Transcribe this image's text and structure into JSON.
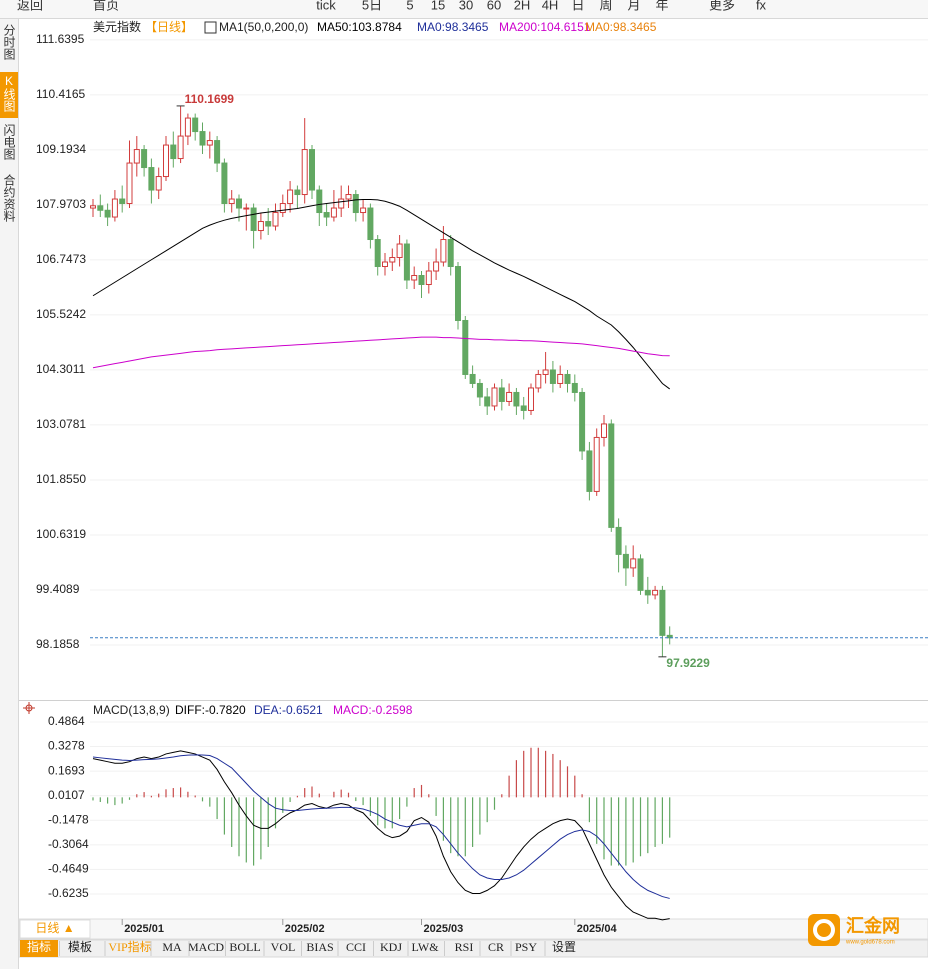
{
  "toolbar": [
    "返回",
    "首页",
    "tick",
    "5日",
    "5",
    "15",
    "30",
    "60",
    "2H",
    "4H",
    "日",
    "周",
    "月",
    "年",
    "更多",
    "fx"
  ],
  "side_tabs": [
    "分时图",
    "K线图",
    "闪电图",
    "合约资料"
  ],
  "period_tab": "日线 ▲",
  "bottom_tabs": [
    "指标",
    "模板",
    "VIP指标",
    "MA",
    "MACD",
    "BOLL",
    "VOL",
    "BIAS",
    "CCI",
    "KDJ",
    "LW&",
    "RSI",
    "CR",
    "PSY",
    "设置"
  ],
  "logo": {
    "text": "汇金网",
    "url": "www.gold678.com"
  },
  "chart_data": {
    "type": "candlestick",
    "title": "美元指数",
    "period": "【日线】",
    "indicator": "MA1(50,0,200,0)",
    "ma0_label": "MA0:",
    "ma0_colors": [
      "#1f2f9a",
      "#e8820c"
    ],
    "up_color": "#d23c3c",
    "down_color": "#62a862",
    "last_line_color": "#3a7fc4",
    "ylim": [
      97.03,
      112.08
    ],
    "yticks": [
      111.6395,
      110.4165,
      109.1934,
      107.9703,
      106.7473,
      105.5242,
      104.3011,
      103.0781,
      {
        "value": 101.855,
        "label": "101.8550"
      },
      100.6319,
      99.4089,
      98.1858
    ],
    "categories": [
      null,
      null,
      null,
      null,
      "2025/01",
      null,
      null,
      null,
      null,
      null,
      null,
      null,
      null,
      null,
      null,
      null,
      null,
      null,
      null,
      null,
      null,
      null,
      null,
      null,
      null,
      null,
      "2025/02",
      null,
      null,
      null,
      null,
      null,
      null,
      null,
      null,
      null,
      null,
      null,
      null,
      null,
      null,
      null,
      null,
      null,
      null,
      "2025/03",
      null,
      null,
      null,
      null,
      null,
      null,
      null,
      null,
      null,
      null,
      null,
      null,
      null,
      null,
      null,
      null,
      null,
      null,
      null,
      null,
      "2025/04",
      null,
      null,
      null,
      null,
      null,
      null,
      null,
      null,
      null,
      null,
      null,
      null,
      null
    ],
    "candles": [
      [
        107.9,
        108.1,
        107.7,
        107.95
      ],
      [
        107.95,
        108.2,
        107.7,
        107.85
      ],
      [
        107.85,
        108.0,
        107.5,
        107.7
      ],
      [
        107.7,
        108.3,
        107.6,
        108.1
      ],
      [
        108.1,
        108.4,
        107.8,
        108.0
      ],
      [
        108.0,
        109.4,
        107.9,
        108.9
      ],
      [
        108.9,
        109.5,
        108.6,
        109.2
      ],
      [
        109.2,
        109.3,
        108.6,
        108.8
      ],
      [
        108.8,
        109.0,
        108.0,
        108.3
      ],
      [
        108.3,
        108.8,
        108.1,
        108.6
      ],
      [
        108.6,
        109.5,
        108.5,
        109.3
      ],
      [
        109.3,
        109.6,
        108.8,
        109.0
      ],
      [
        109.0,
        110.1699,
        108.9,
        109.5
      ],
      [
        109.5,
        110.0,
        109.3,
        109.9
      ],
      [
        109.9,
        110.0,
        109.4,
        109.6
      ],
      [
        109.6,
        109.8,
        109.1,
        109.3
      ],
      [
        109.3,
        109.6,
        109.0,
        109.4
      ],
      [
        109.4,
        109.5,
        108.7,
        108.9
      ],
      [
        108.9,
        109.0,
        107.8,
        108.0
      ],
      [
        108.0,
        108.3,
        107.8,
        108.1
      ],
      [
        108.1,
        108.2,
        107.6,
        107.9
      ],
      [
        107.9,
        108.0,
        107.4,
        107.9
      ],
      [
        107.9,
        108.0,
        107.0,
        107.4
      ],
      [
        107.4,
        107.8,
        107.2,
        107.6
      ],
      [
        107.6,
        107.9,
        107.3,
        107.5
      ],
      [
        107.5,
        108.0,
        107.4,
        107.8
      ],
      [
        107.8,
        108.2,
        107.7,
        108.0
      ],
      [
        108.0,
        108.5,
        107.8,
        108.3
      ],
      [
        108.3,
        108.4,
        107.9,
        108.2
      ],
      [
        108.2,
        109.9,
        108.0,
        109.2
      ],
      [
        109.2,
        109.3,
        108.1,
        108.3
      ],
      [
        108.3,
        108.4,
        107.5,
        107.8
      ],
      [
        107.8,
        108.0,
        107.5,
        107.7
      ],
      [
        107.7,
        108.3,
        107.6,
        107.9
      ],
      [
        107.9,
        108.4,
        107.7,
        108.1
      ],
      [
        108.1,
        108.4,
        107.9,
        108.2
      ],
      [
        108.2,
        108.3,
        107.6,
        107.8
      ],
      [
        107.8,
        108.1,
        107.6,
        107.9
      ],
      [
        107.9,
        108.0,
        107.0,
        107.2
      ],
      [
        107.2,
        107.3,
        106.4,
        106.6
      ],
      [
        106.6,
        106.9,
        106.4,
        106.7
      ],
      [
        106.7,
        107.0,
        106.5,
        106.8
      ],
      [
        106.8,
        107.3,
        106.6,
        107.1
      ],
      [
        107.1,
        107.2,
        106.1,
        106.3
      ],
      [
        106.3,
        106.6,
        106.1,
        106.4
      ],
      [
        106.4,
        106.5,
        105.9,
        106.2
      ],
      [
        106.2,
        106.7,
        106.0,
        106.5
      ],
      [
        106.5,
        107.0,
        106.3,
        106.7
      ],
      [
        106.7,
        107.5,
        106.6,
        107.2
      ],
      [
        107.2,
        107.3,
        106.4,
        106.6
      ],
      [
        106.6,
        106.7,
        105.2,
        105.4
      ],
      [
        105.4,
        105.5,
        104.1,
        104.2
      ],
      [
        104.2,
        104.4,
        103.9,
        104.0
      ],
      [
        104.0,
        104.1,
        103.5,
        103.7
      ],
      [
        103.7,
        103.9,
        103.3,
        103.5
      ],
      [
        103.5,
        104.0,
        103.4,
        103.9
      ],
      [
        103.9,
        104.1,
        103.4,
        103.6
      ],
      [
        103.6,
        104.0,
        103.5,
        103.8
      ],
      [
        103.8,
        103.9,
        103.3,
        103.5
      ],
      [
        103.5,
        103.7,
        103.2,
        103.4
      ],
      [
        103.4,
        104.0,
        103.3,
        103.9
      ],
      [
        103.9,
        104.3,
        103.8,
        104.2
      ],
      [
        104.2,
        104.7,
        104.0,
        104.3
      ],
      [
        104.3,
        104.5,
        103.8,
        104.0
      ],
      [
        104.0,
        104.4,
        103.9,
        104.2
      ],
      [
        104.2,
        104.3,
        103.8,
        104.0
      ],
      [
        104.0,
        104.2,
        103.6,
        103.8
      ],
      [
        103.8,
        103.9,
        102.3,
        102.5
      ],
      [
        102.5,
        102.7,
        101.4,
        101.6
      ],
      [
        101.6,
        103.0,
        101.5,
        102.8
      ],
      [
        102.8,
        103.3,
        102.6,
        103.1
      ],
      [
        103.1,
        103.2,
        100.7,
        100.8
      ],
      [
        100.8,
        101.0,
        99.8,
        100.2
      ],
      [
        100.2,
        100.4,
        99.5,
        99.9
      ],
      [
        99.9,
        100.4,
        99.7,
        100.1
      ],
      [
        100.1,
        100.2,
        99.3,
        99.4
      ],
      [
        99.4,
        99.7,
        99.1,
        99.3
      ],
      [
        99.3,
        99.5,
        99.2,
        99.4
      ],
      [
        99.4,
        99.5,
        97.9229,
        98.4
      ],
      [
        98.4,
        98.6,
        98.2,
        98.3465
      ]
    ],
    "series": [
      {
        "name": "MA50:",
        "color": "#000000",
        "values": [
          105.95,
          106.05,
          106.15,
          106.25,
          106.35,
          106.45,
          106.55,
          106.65,
          106.75,
          106.85,
          106.95,
          107.05,
          107.15,
          107.25,
          107.35,
          107.45,
          107.52,
          107.58,
          107.63,
          107.67,
          107.7,
          107.73,
          107.76,
          107.79,
          107.81,
          107.83,
          107.85,
          107.87,
          107.89,
          107.92,
          107.95,
          107.98,
          108.0,
          108.02,
          108.04,
          108.06,
          108.08,
          108.09,
          108.09,
          108.08,
          108.05,
          108.0,
          107.94,
          107.85,
          107.75,
          107.65,
          107.55,
          107.45,
          107.35,
          107.25,
          107.15,
          107.05,
          106.95,
          106.86,
          106.77,
          106.68,
          106.6,
          106.52,
          106.45,
          106.38,
          106.3,
          106.22,
          106.14,
          106.06,
          105.98,
          105.9,
          105.82,
          105.72,
          105.62,
          105.5,
          105.4,
          105.3,
          105.15,
          104.98,
          104.8,
          104.6,
          104.4,
          104.2,
          104.0,
          103.8784
        ]
      },
      {
        "name": "MA200:",
        "color": "#cc00cc",
        "values": [
          104.35,
          104.38,
          104.41,
          104.44,
          104.47,
          104.5,
          104.53,
          104.56,
          104.59,
          104.61,
          104.63,
          104.65,
          104.67,
          104.69,
          104.71,
          104.72,
          104.73,
          104.75,
          104.76,
          104.77,
          104.78,
          104.79,
          104.8,
          104.81,
          104.82,
          104.83,
          104.84,
          104.85,
          104.86,
          104.87,
          104.88,
          104.89,
          104.9,
          104.91,
          104.92,
          104.93,
          104.94,
          104.95,
          104.96,
          104.97,
          104.98,
          104.99,
          105.0,
          105.01,
          105.02,
          105.03,
          105.03,
          105.03,
          105.02,
          105.02,
          105.01,
          105.0,
          104.99,
          104.98,
          104.98,
          104.97,
          104.97,
          104.96,
          104.96,
          104.95,
          104.95,
          104.94,
          104.93,
          104.92,
          104.91,
          104.9,
          104.89,
          104.88,
          104.86,
          104.84,
          104.82,
          104.8,
          104.78,
          104.75,
          104.72,
          104.69,
          104.66,
          104.64,
          104.62,
          104.6151
        ]
      }
    ],
    "macd": {
      "type": "macd",
      "title": "MACD(13,8,9)",
      "ylim": [
        -0.804,
        0.615
      ],
      "yticks": [
        0.4864,
        0.3278,
        0.1693,
        0.0107,
        -0.1478,
        -0.3064,
        -0.4649,
        -0.6235
      ],
      "series": [
        {
          "name": "DIFF:",
          "color": "#000000",
          "value_labels": {
            "79": "-0.7820"
          },
          "values": [
            0.25,
            0.24,
            0.23,
            0.22,
            0.22,
            0.23,
            0.25,
            0.26,
            0.25,
            0.26,
            0.28,
            0.29,
            0.3,
            0.29,
            0.28,
            0.26,
            0.24,
            0.18,
            0.1,
            0.03,
            -0.05,
            -0.12,
            -0.18,
            -0.2,
            -0.2,
            -0.17,
            -0.13,
            -0.1,
            -0.08,
            -0.05,
            -0.04,
            -0.06,
            -0.07,
            -0.05,
            -0.04,
            -0.05,
            -0.08,
            -0.1,
            -0.15,
            -0.2,
            -0.24,
            -0.26,
            -0.25,
            -0.22,
            -0.15,
            -0.13,
            -0.16,
            -0.25,
            -0.38,
            -0.48,
            -0.55,
            -0.6,
            -0.62,
            -0.62,
            -0.6,
            -0.57,
            -0.52,
            -0.45,
            -0.38,
            -0.32,
            -0.27,
            -0.23,
            -0.2,
            -0.17,
            -0.15,
            -0.14,
            -0.15,
            -0.2,
            -0.3,
            -0.4,
            -0.5,
            -0.58,
            -0.64,
            -0.7,
            -0.74,
            -0.76,
            -0.78,
            -0.78,
            -0.79,
            -0.782
          ]
        },
        {
          "name": "DEA:",
          "color": "#1f2f9a",
          "value_labels": {
            "79": "-0.6521"
          },
          "values": [
            0.26,
            0.255,
            0.25,
            0.245,
            0.24,
            0.238,
            0.24,
            0.243,
            0.245,
            0.248,
            0.254,
            0.26,
            0.268,
            0.272,
            0.274,
            0.273,
            0.27,
            0.25,
            0.22,
            0.19,
            0.14,
            0.09,
            0.04,
            0.0,
            -0.04,
            -0.07,
            -0.08,
            -0.085,
            -0.085,
            -0.08,
            -0.075,
            -0.072,
            -0.07,
            -0.068,
            -0.065,
            -0.065,
            -0.068,
            -0.075,
            -0.09,
            -0.11,
            -0.14,
            -0.16,
            -0.18,
            -0.19,
            -0.18,
            -0.17,
            -0.17,
            -0.19,
            -0.24,
            -0.3,
            -0.36,
            -0.41,
            -0.46,
            -0.5,
            -0.52,
            -0.53,
            -0.53,
            -0.52,
            -0.5,
            -0.47,
            -0.43,
            -0.39,
            -0.35,
            -0.31,
            -0.27,
            -0.24,
            -0.22,
            -0.21,
            -0.22,
            -0.25,
            -0.3,
            -0.36,
            -0.42,
            -0.48,
            -0.53,
            -0.57,
            -0.6,
            -0.62,
            -0.64,
            -0.6521
          ]
        }
      ],
      "histogram": {
        "name": "MACD:",
        "color": "#cc00cc",
        "up_color": "#c84a4a",
        "down_color": "#62a862",
        "value_labels": {
          "79": "-0.2598"
        },
        "values": [
          -0.02,
          -0.03,
          -0.04,
          -0.05,
          -0.04,
          -0.016,
          0.02,
          0.034,
          0.01,
          0.024,
          0.052,
          0.06,
          0.064,
          0.036,
          0.012,
          -0.026,
          -0.06,
          -0.14,
          -0.24,
          -0.32,
          -0.38,
          -0.42,
          -0.44,
          -0.4,
          -0.32,
          -0.2,
          -0.1,
          -0.03,
          0.01,
          0.06,
          0.07,
          0.024,
          0.0,
          0.036,
          0.05,
          0.03,
          -0.024,
          -0.05,
          -0.12,
          -0.18,
          -0.2,
          -0.2,
          -0.14,
          -0.06,
          0.06,
          0.08,
          0.02,
          -0.12,
          -0.28,
          -0.36,
          -0.38,
          -0.38,
          -0.32,
          -0.24,
          -0.16,
          -0.08,
          0.02,
          0.14,
          0.24,
          0.3,
          0.32,
          0.32,
          0.3,
          0.28,
          0.24,
          0.2,
          0.14,
          0.02,
          -0.16,
          -0.3,
          -0.4,
          -0.44,
          -0.44,
          -0.44,
          -0.42,
          -0.38,
          -0.36,
          -0.32,
          -0.3,
          -0.2598
        ]
      }
    }
  }
}
